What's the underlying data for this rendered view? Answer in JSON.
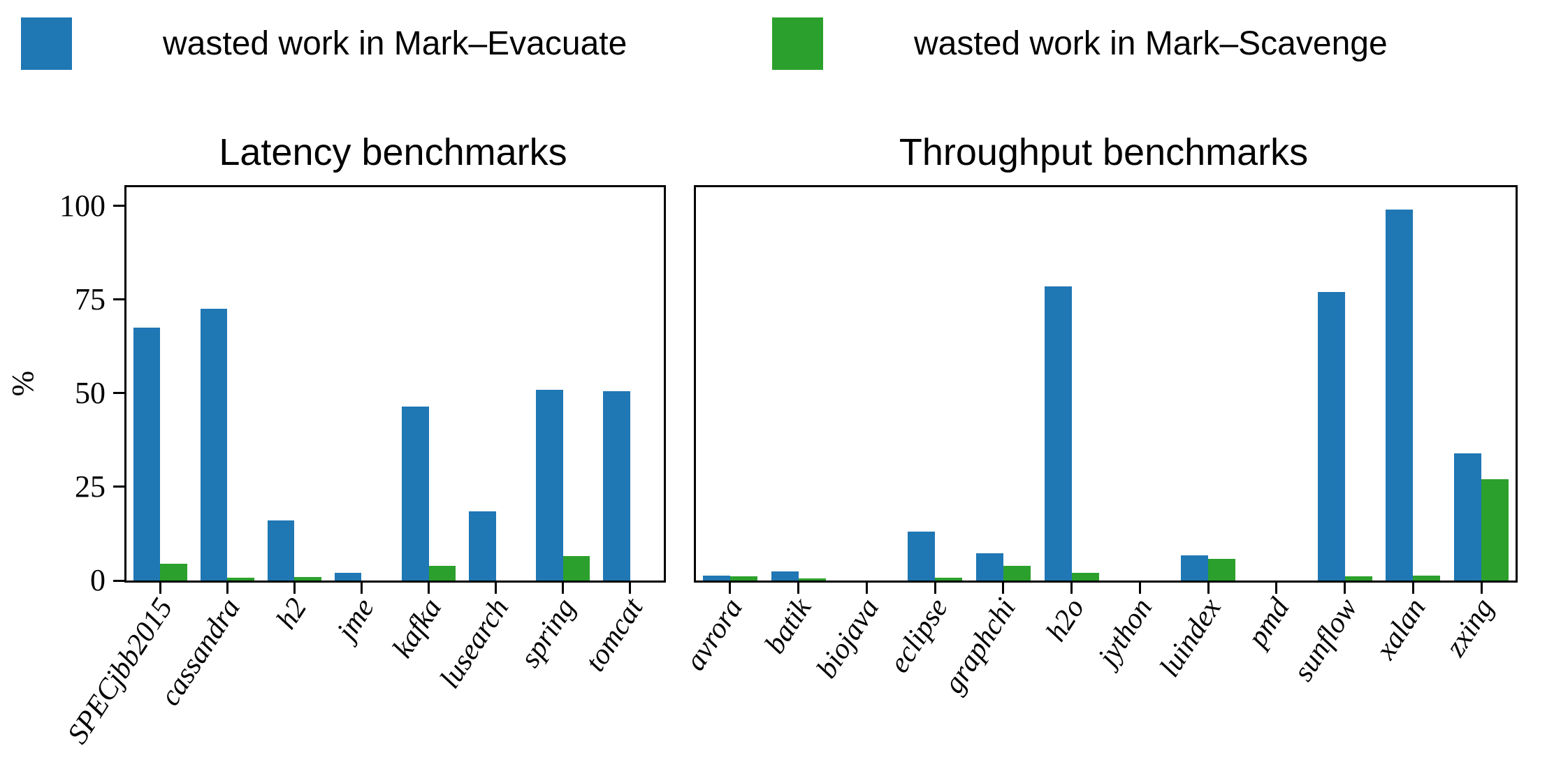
{
  "legend": {
    "items": [
      {
        "label": "wasted work in Mark–Evacuate",
        "color": "#1f77b4"
      },
      {
        "label": "wasted work in Mark–Scavenge",
        "color": "#2ca02c"
      }
    ]
  },
  "chart_data": [
    {
      "type": "bar",
      "title": "Latency benchmarks",
      "ylabel": "%",
      "yticks": [
        0,
        25,
        50,
        75,
        100
      ],
      "ylim": [
        0,
        105
      ],
      "grid": false,
      "categories": [
        "SPECjbb2015",
        "cassandra",
        "h2",
        "jme",
        "kafka",
        "lusearch",
        "spring",
        "tomcat"
      ],
      "series": [
        {
          "name": "wasted work in Mark–Evacuate",
          "color": "#1f77b4",
          "values": [
            67.5,
            72.5,
            16,
            2,
            46.5,
            18.5,
            51,
            50.5
          ]
        },
        {
          "name": "wasted work in Mark–Scavenge",
          "color": "#2ca02c",
          "values": [
            4.5,
            0.7,
            1,
            0,
            4,
            0,
            6.5,
            0
          ]
        }
      ]
    },
    {
      "type": "bar",
      "title": "Throughput benchmarks",
      "ylabel": "",
      "yticks": [],
      "ylim": [
        0,
        105
      ],
      "grid": false,
      "categories": [
        "avrora",
        "batik",
        "biojava",
        "eclipse",
        "graphchi",
        "h2o",
        "jython",
        "luindex",
        "pmd",
        "sunflow",
        "xalan",
        "zxing"
      ],
      "series": [
        {
          "name": "wasted work in Mark–Evacuate",
          "color": "#1f77b4",
          "values": [
            1.3,
            2.4,
            0,
            13,
            7.2,
            78.5,
            0,
            6.7,
            0,
            77,
            99,
            34
          ]
        },
        {
          "name": "wasted work in Mark–Scavenge",
          "color": "#2ca02c",
          "values": [
            1.2,
            0.6,
            0,
            0.8,
            4,
            2,
            0,
            5.7,
            0,
            1.1,
            1.3,
            27
          ]
        }
      ]
    }
  ]
}
